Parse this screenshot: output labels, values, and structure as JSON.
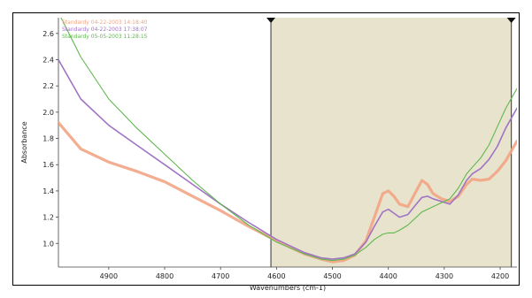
{
  "chart_data": {
    "type": "line",
    "title": "",
    "xlabel": "Wavenumbers (cm-1)",
    "ylabel": "Absorbance",
    "xlim": [
      4990,
      4170
    ],
    "ylim": [
      0.82,
      2.72
    ],
    "x_reversed": true,
    "grid": false,
    "legend_position": "top-left",
    "x_ticks": [
      4900,
      4800,
      4700,
      4600,
      4500,
      4400,
      4300,
      4200
    ],
    "y_ticks": [
      1.0,
      1.2,
      1.4,
      1.6,
      1.8,
      2.0,
      2.2,
      2.4,
      2.6
    ],
    "y_tick_labels": [
      "1.0",
      "1.2",
      "1.4",
      "1.6",
      "1.8",
      "2.0",
      "2.2",
      "2.4",
      "2.6"
    ],
    "highlight_region": {
      "x_from": 4610,
      "x_to": 4180,
      "color": "#e8e3cd"
    },
    "series": [
      {
        "name": "Standardy 04-22-2003 14:18:40",
        "color": "#f2a484",
        "stroke_width": 3.2,
        "points": [
          [
            4990,
            1.92
          ],
          [
            4950,
            1.72
          ],
          [
            4900,
            1.62
          ],
          [
            4850,
            1.55
          ],
          [
            4800,
            1.47
          ],
          [
            4750,
            1.36
          ],
          [
            4700,
            1.25
          ],
          [
            4650,
            1.13
          ],
          [
            4600,
            1.02
          ],
          [
            4550,
            0.92
          ],
          [
            4520,
            0.88
          ],
          [
            4500,
            0.86
          ],
          [
            4480,
            0.87
          ],
          [
            4460,
            0.91
          ],
          [
            4440,
            1.02
          ],
          [
            4425,
            1.2
          ],
          [
            4410,
            1.38
          ],
          [
            4400,
            1.4
          ],
          [
            4390,
            1.36
          ],
          [
            4380,
            1.3
          ],
          [
            4365,
            1.28
          ],
          [
            4350,
            1.4
          ],
          [
            4340,
            1.48
          ],
          [
            4330,
            1.45
          ],
          [
            4320,
            1.38
          ],
          [
            4305,
            1.34
          ],
          [
            4290,
            1.32
          ],
          [
            4275,
            1.36
          ],
          [
            4260,
            1.45
          ],
          [
            4250,
            1.49
          ],
          [
            4235,
            1.48
          ],
          [
            4220,
            1.49
          ],
          [
            4205,
            1.55
          ],
          [
            4190,
            1.63
          ],
          [
            4170,
            1.78
          ]
        ]
      },
      {
        "name": "Standardy 04-22-2003 17:38:07",
        "color": "#a074c4",
        "stroke_width": 1.6,
        "points": [
          [
            4990,
            2.4
          ],
          [
            4950,
            2.1
          ],
          [
            4900,
            1.9
          ],
          [
            4850,
            1.75
          ],
          [
            4800,
            1.6
          ],
          [
            4750,
            1.45
          ],
          [
            4700,
            1.3
          ],
          [
            4650,
            1.16
          ],
          [
            4600,
            1.03
          ],
          [
            4550,
            0.93
          ],
          [
            4520,
            0.89
          ],
          [
            4500,
            0.88
          ],
          [
            4480,
            0.89
          ],
          [
            4460,
            0.92
          ],
          [
            4440,
            1.01
          ],
          [
            4425,
            1.13
          ],
          [
            4410,
            1.24
          ],
          [
            4400,
            1.26
          ],
          [
            4390,
            1.23
          ],
          [
            4380,
            1.2
          ],
          [
            4365,
            1.22
          ],
          [
            4350,
            1.3
          ],
          [
            4340,
            1.35
          ],
          [
            4330,
            1.36
          ],
          [
            4320,
            1.34
          ],
          [
            4305,
            1.32
          ],
          [
            4290,
            1.3
          ],
          [
            4275,
            1.37
          ],
          [
            4260,
            1.48
          ],
          [
            4250,
            1.53
          ],
          [
            4235,
            1.57
          ],
          [
            4220,
            1.64
          ],
          [
            4205,
            1.74
          ],
          [
            4190,
            1.88
          ],
          [
            4170,
            2.03
          ]
        ]
      },
      {
        "name": "Standardy 05-05-2003 11:28:15",
        "color": "#5fb84e",
        "stroke_width": 1.1,
        "points": [
          [
            4990,
            2.76
          ],
          [
            4950,
            2.42
          ],
          [
            4900,
            2.1
          ],
          [
            4850,
            1.88
          ],
          [
            4800,
            1.68
          ],
          [
            4750,
            1.48
          ],
          [
            4700,
            1.3
          ],
          [
            4650,
            1.14
          ],
          [
            4600,
            1.01
          ],
          [
            4550,
            0.92
          ],
          [
            4520,
            0.88
          ],
          [
            4500,
            0.87
          ],
          [
            4480,
            0.88
          ],
          [
            4460,
            0.91
          ],
          [
            4440,
            0.97
          ],
          [
            4425,
            1.03
          ],
          [
            4410,
            1.07
          ],
          [
            4400,
            1.08
          ],
          [
            4390,
            1.08
          ],
          [
            4380,
            1.1
          ],
          [
            4365,
            1.14
          ],
          [
            4350,
            1.2
          ],
          [
            4340,
            1.24
          ],
          [
            4330,
            1.26
          ],
          [
            4320,
            1.28
          ],
          [
            4305,
            1.31
          ],
          [
            4290,
            1.34
          ],
          [
            4275,
            1.42
          ],
          [
            4260,
            1.53
          ],
          [
            4250,
            1.58
          ],
          [
            4235,
            1.65
          ],
          [
            4220,
            1.75
          ],
          [
            4205,
            1.89
          ],
          [
            4190,
            2.03
          ],
          [
            4170,
            2.18
          ]
        ]
      }
    ]
  }
}
